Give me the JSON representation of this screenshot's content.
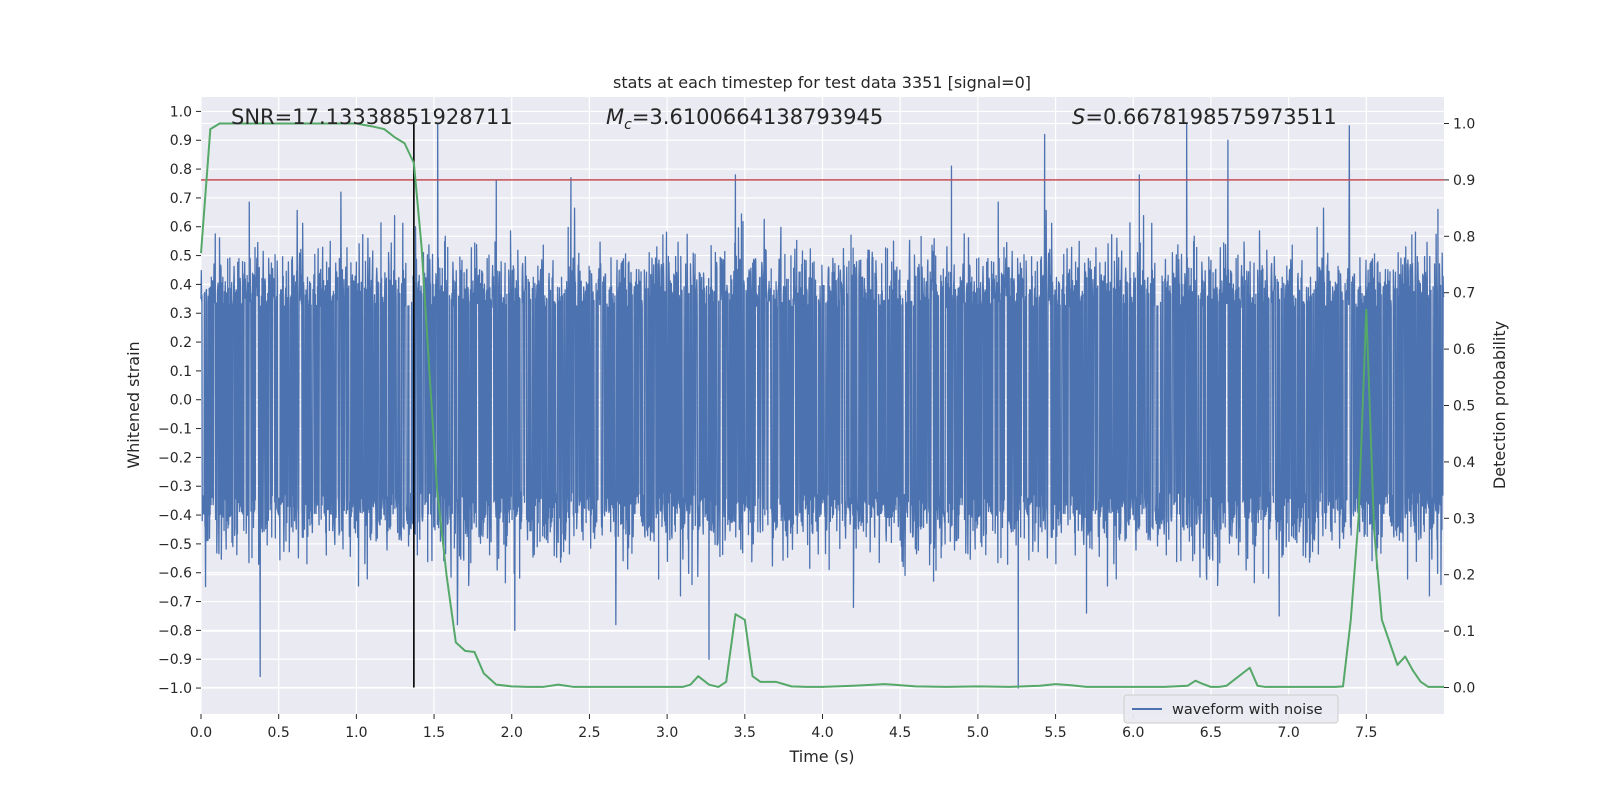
{
  "chart_data": {
    "type": "line",
    "title": "stats at each timestep for test data 3351 [signal=0]",
    "xlabel": "Time (s)",
    "ylabel_left": "Whitened strain",
    "ylabel_right": "Detection probability",
    "xlim": [
      0,
      8.0
    ],
    "ylim_left": [
      -1.09,
      1.05
    ],
    "ylim_right": [
      -0.047,
      1.047
    ],
    "x_ticks": [
      0.0,
      0.5,
      1.0,
      1.5,
      2.0,
      2.5,
      3.0,
      3.5,
      4.0,
      4.5,
      5.0,
      5.5,
      6.0,
      6.5,
      7.0,
      7.5
    ],
    "x_tick_labels": [
      "0.0",
      "0.5",
      "1.0",
      "1.5",
      "2.0",
      "2.5",
      "3.0",
      "3.5",
      "4.0",
      "4.5",
      "5.0",
      "5.5",
      "6.0",
      "6.5",
      "7.0",
      "7.5"
    ],
    "y_left_ticks": [
      1.0,
      0.9,
      0.8,
      0.7,
      0.6,
      0.5,
      0.4,
      0.3,
      0.2,
      0.1,
      0.0,
      -0.1,
      -0.2,
      -0.3,
      -0.4,
      -0.5,
      -0.6,
      -0.7,
      -0.8,
      -0.9,
      -1.0
    ],
    "y_left_tick_labels": [
      "1.0",
      "0.9",
      "0.8",
      "0.7",
      "0.6",
      "0.5",
      "0.4",
      "0.3",
      "0.2",
      "0.1",
      "0.0",
      "−0.1",
      "−0.2",
      "−0.3",
      "−0.4",
      "−0.5",
      "−0.6",
      "−0.7",
      "−0.8",
      "−0.9",
      "−1.0"
    ],
    "y_right_ticks": [
      1.0,
      0.9,
      0.8,
      0.7,
      0.6,
      0.5,
      0.4,
      0.3,
      0.2,
      0.1,
      0.0
    ],
    "y_right_tick_labels": [
      "1.0",
      "0.9",
      "0.8",
      "0.7",
      "0.6",
      "0.5",
      "0.4",
      "0.3",
      "0.2",
      "0.1",
      "0.0"
    ],
    "annotations": {
      "snr": "SNR=17.13338851928711",
      "mc_symbol": "M",
      "mc_sub": "c",
      "mc_value": "=3.6100664138793945",
      "s_symbol": "S",
      "s_value": "=0.6678198575973511"
    },
    "legend": [
      "waveform with noise"
    ],
    "legend_position": "lower right",
    "threshold": 0.9,
    "marker_time": 1.37,
    "grid": true,
    "waveform": {
      "name": "waveform with noise",
      "color": "#4c72b0",
      "sample_count": 4096,
      "envelope": 0.32,
      "peaks": [
        [
          0.38,
          -0.96
        ],
        [
          1.38,
          0.6
        ],
        [
          1.65,
          -0.78
        ],
        [
          2.02,
          -0.8
        ],
        [
          2.38,
          0.77
        ],
        [
          2.67,
          -0.78
        ],
        [
          3.27,
          -0.9
        ],
        [
          3.44,
          0.78
        ],
        [
          4.83,
          0.81
        ],
        [
          5.26,
          -1.0
        ],
        [
          5.43,
          0.92
        ],
        [
          6.04,
          0.78
        ],
        [
          6.61,
          0.9
        ],
        [
          6.94,
          -0.75
        ],
        [
          7.39,
          0.95
        ],
        [
          7.96,
          0.66
        ],
        [
          0.9,
          0.72
        ],
        [
          1.9,
          0.76
        ],
        [
          4.2,
          -0.72
        ],
        [
          5.7,
          -0.74
        ]
      ]
    },
    "probability": {
      "name": "detection probability",
      "color": "#55a868",
      "x": [
        0.0,
        0.06,
        0.12,
        0.2,
        0.4,
        0.6,
        0.8,
        1.0,
        1.1,
        1.18,
        1.25,
        1.31,
        1.37,
        1.42,
        1.47,
        1.52,
        1.58,
        1.64,
        1.7,
        1.76,
        1.82,
        1.9,
        2.0,
        2.1,
        2.2,
        2.3,
        2.4,
        2.6,
        2.8,
        3.0,
        3.1,
        3.15,
        3.2,
        3.27,
        3.33,
        3.38,
        3.44,
        3.5,
        3.55,
        3.6,
        3.7,
        3.8,
        3.9,
        4.0,
        4.2,
        4.4,
        4.6,
        4.8,
        5.0,
        5.2,
        5.4,
        5.5,
        5.6,
        5.7,
        5.8,
        6.0,
        6.2,
        6.35,
        6.4,
        6.45,
        6.5,
        6.55,
        6.6,
        6.75,
        6.8,
        6.85,
        7.0,
        7.2,
        7.3,
        7.35,
        7.4,
        7.45,
        7.5,
        7.55,
        7.6,
        7.65,
        7.7,
        7.75,
        7.8,
        7.85,
        7.9,
        8.0
      ],
      "y": [
        0.77,
        0.99,
        1.0,
        1.0,
        1.0,
        1.0,
        1.0,
        1.0,
        0.995,
        0.99,
        0.975,
        0.965,
        0.93,
        0.78,
        0.56,
        0.35,
        0.2,
        0.08,
        0.065,
        0.063,
        0.025,
        0.005,
        0.002,
        0.001,
        0.001,
        0.005,
        0.001,
        0.001,
        0.001,
        0.001,
        0.001,
        0.005,
        0.02,
        0.005,
        0.001,
        0.01,
        0.13,
        0.12,
        0.02,
        0.01,
        0.01,
        0.002,
        0.001,
        0.001,
        0.003,
        0.006,
        0.002,
        0.001,
        0.002,
        0.001,
        0.003,
        0.006,
        0.004,
        0.001,
        0.001,
        0.001,
        0.001,
        0.003,
        0.012,
        0.006,
        0.001,
        0.001,
        0.003,
        0.035,
        0.003,
        0.001,
        0.001,
        0.001,
        0.001,
        0.002,
        0.12,
        0.3,
        0.67,
        0.28,
        0.12,
        0.08,
        0.04,
        0.055,
        0.03,
        0.01,
        0.001,
        0.001
      ]
    }
  }
}
